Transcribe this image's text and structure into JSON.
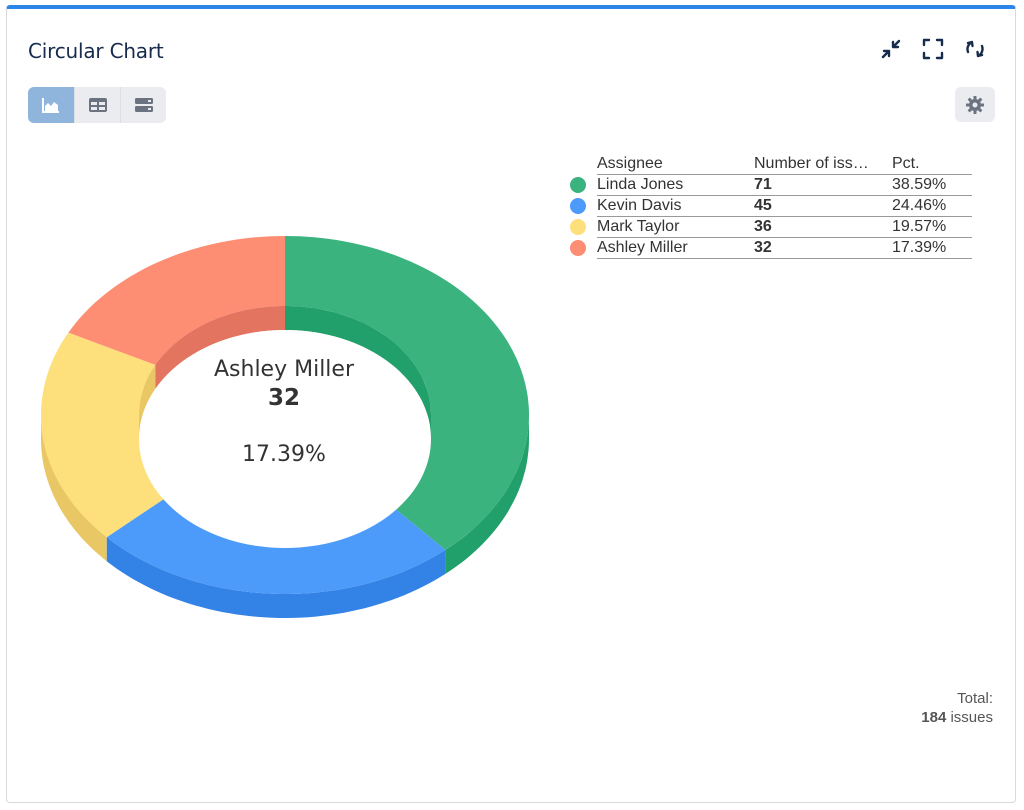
{
  "header": {
    "title": "Circular Chart",
    "icons": [
      "collapse-icon",
      "fullscreen-icon",
      "refresh-icon"
    ]
  },
  "toolbar": {
    "views": [
      "chart-icon",
      "table-icon",
      "list-icon"
    ],
    "active_view": "chart",
    "settings_icon": "gear-icon"
  },
  "legend": {
    "headers": {
      "assignee": "Assignee",
      "number": "Number of iss…",
      "pct": "Pct."
    },
    "rows": [
      {
        "name": "Linda Jones",
        "number": "71",
        "pct": "38.59%"
      },
      {
        "name": "Kevin Davis",
        "number": "45",
        "pct": "24.46%"
      },
      {
        "name": "Mark Taylor",
        "number": "36",
        "pct": "19.57%"
      },
      {
        "name": "Ashley Miller",
        "number": "32",
        "pct": "17.39%"
      }
    ]
  },
  "center": {
    "name": "Ashley Miller",
    "value": "32",
    "pct": "17.39%"
  },
  "total": {
    "label": "Total:",
    "count": "184",
    "unit": "issues"
  },
  "chart_data": {
    "type": "pie",
    "style": "3d-donut",
    "categories": [
      "Linda Jones",
      "Kevin Davis",
      "Mark Taylor",
      "Ashley Miller"
    ],
    "values": [
      71,
      45,
      36,
      32
    ],
    "colors": [
      "#3bb37e",
      "#4c9bfa",
      "#fddf7c",
      "#fd8d73"
    ],
    "side_colors": [
      "#22a06b",
      "#3382e6",
      "#e8c764",
      "#e3745f"
    ]
  }
}
